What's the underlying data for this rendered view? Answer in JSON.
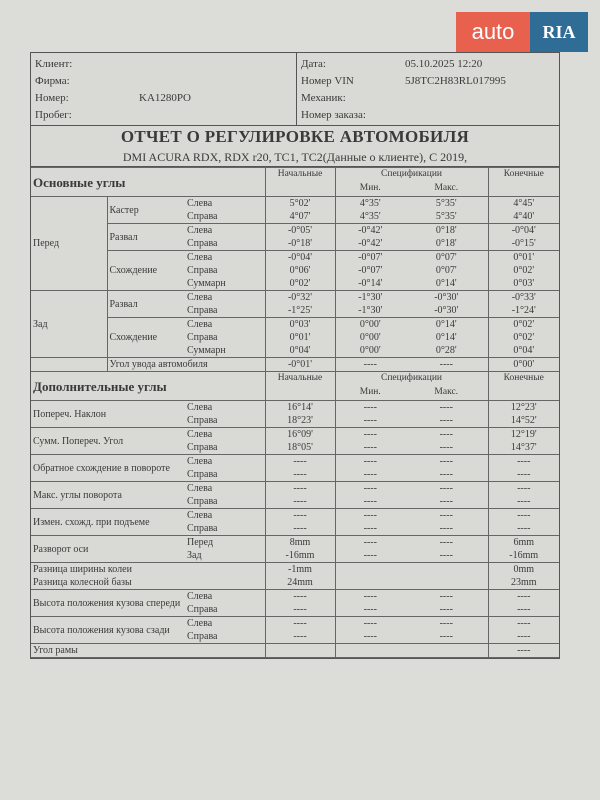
{
  "watermark": {
    "part1": "auto",
    "part2": "RIA"
  },
  "header": {
    "left": [
      {
        "label": "Клиент:",
        "value": ""
      },
      {
        "label": "Фирма:",
        "value": ""
      },
      {
        "label": "Номер:",
        "value": "KA1280PO"
      },
      {
        "label": "Пробег:",
        "value": ""
      }
    ],
    "right": [
      {
        "label": "Дата:",
        "value": "05.10.2025 12:20"
      },
      {
        "label": "Номер VIN",
        "value": "5J8TC2H83RL017995"
      },
      {
        "label": "Механик:",
        "value": ""
      },
      {
        "label": "Номер заказа:",
        "value": ""
      }
    ]
  },
  "title": "ОТЧЕТ О РЕГУЛИРОВКЕ АВТОМОБИЛЯ",
  "subtitle": "DMI ACURA RDX, RDX r20, TC1, TC2(Данные о клиенте), C 2019,",
  "columns": {
    "initial": "Начальные",
    "spec": "Спецификации",
    "min": "Мин.",
    "max": "Макс.",
    "final": "Конечные"
  },
  "main": {
    "heading": "Основные углы",
    "groups": [
      {
        "group": "Перед",
        "items": [
          {
            "name": "Кастер",
            "rows": [
              {
                "side": "Слева",
                "initial": "5°02'",
                "min": "4°35'",
                "max": "5°35'",
                "final": "4°45'"
              },
              {
                "side": "Справа",
                "initial": "4°07'",
                "min": "4°35'",
                "max": "5°35'",
                "final": "4°40'"
              }
            ]
          },
          {
            "name": "Развал",
            "rows": [
              {
                "side": "Слева",
                "initial": "-0°05'",
                "min": "-0°42'",
                "max": "0°18'",
                "final": "-0°04'"
              },
              {
                "side": "Справа",
                "initial": "-0°18'",
                "min": "-0°42'",
                "max": "0°18'",
                "final": "-0°15'"
              }
            ]
          },
          {
            "name": "Схождение",
            "rows": [
              {
                "side": "Слева",
                "initial": "-0°04'",
                "min": "-0°07'",
                "max": "0°07'",
                "final": "0°01'"
              },
              {
                "side": "Справа",
                "initial": "0°06'",
                "min": "-0°07'",
                "max": "0°07'",
                "final": "0°02'"
              },
              {
                "side": "Суммарн",
                "initial": "0°02'",
                "min": "-0°14'",
                "max": "0°14'",
                "final": "0°03'"
              }
            ]
          }
        ]
      },
      {
        "group": "Зад",
        "items": [
          {
            "name": "Развал",
            "rows": [
              {
                "side": "Слева",
                "initial": "-0°32'",
                "min": "-1°30'",
                "max": "-0°30'",
                "final": "-0°33'"
              },
              {
                "side": "Справа",
                "initial": "-1°25'",
                "min": "-1°30'",
                "max": "-0°30'",
                "final": "-1°24'"
              }
            ]
          },
          {
            "name": "Схождение",
            "rows": [
              {
                "side": "Слева",
                "initial": "0°03'",
                "min": "0°00'",
                "max": "0°14'",
                "final": "0°02'"
              },
              {
                "side": "Справа",
                "initial": "0°01'",
                "min": "0°00'",
                "max": "0°14'",
                "final": "0°02'"
              },
              {
                "side": "Суммарн",
                "initial": "0°04'",
                "min": "0°00'",
                "max": "0°28'",
                "final": "0°04'"
              }
            ]
          }
        ]
      }
    ],
    "thrust": {
      "name": "Угол увода автомобиля",
      "initial": "-0°01'",
      "min": "----",
      "max": "----",
      "final": "0°00'"
    }
  },
  "additional": {
    "heading": "Дополнительные углы",
    "items": [
      {
        "name": "Попереч. Наклон",
        "rows": [
          {
            "side": "Слева",
            "initial": "16°14'",
            "min": "----",
            "max": "----",
            "final": "12°23'"
          },
          {
            "side": "Справа",
            "initial": "18°23'",
            "min": "----",
            "max": "----",
            "final": "14°52'"
          }
        ]
      },
      {
        "name": "Сумм. Попереч. Угол",
        "rows": [
          {
            "side": "Слева",
            "initial": "16°09'",
            "min": "----",
            "max": "----",
            "final": "12°19'"
          },
          {
            "side": "Справа",
            "initial": "18°05'",
            "min": "----",
            "max": "----",
            "final": "14°37'"
          }
        ]
      },
      {
        "name": "Обратное схождение в повороте",
        "rows": [
          {
            "side": "Слева",
            "initial": "----",
            "min": "----",
            "max": "----",
            "final": "----"
          },
          {
            "side": "Справа",
            "initial": "----",
            "min": "----",
            "max": "----",
            "final": "----"
          }
        ]
      },
      {
        "name": "Макс. углы поворота",
        "rows": [
          {
            "side": "Слева",
            "initial": "----",
            "min": "----",
            "max": "----",
            "final": "----"
          },
          {
            "side": "Справа",
            "initial": "----",
            "min": "----",
            "max": "----",
            "final": "----"
          }
        ]
      },
      {
        "name": "Измен. схожд. при подъеме",
        "rows": [
          {
            "side": "Слева",
            "initial": "----",
            "min": "----",
            "max": "----",
            "final": "----"
          },
          {
            "side": "Справа",
            "initial": "----",
            "min": "----",
            "max": "----",
            "final": "----"
          }
        ]
      },
      {
        "name": "Разворот оси",
        "rows": [
          {
            "side": "Перед",
            "initial": "8mm",
            "min": "----",
            "max": "----",
            "final": "6mm"
          },
          {
            "side": "Зад",
            "initial": "-16mm",
            "min": "----",
            "max": "----",
            "final": "-16mm"
          }
        ]
      },
      {
        "name": "Разница ширины колеи",
        "nospec": true,
        "rows": [
          {
            "side": "",
            "initial": "-1mm",
            "min": "",
            "max": "",
            "final": "0mm"
          }
        ]
      },
      {
        "name": "Разница колесной базы",
        "nospec": true,
        "noborder": true,
        "rows": [
          {
            "side": "",
            "initial": "24mm",
            "min": "",
            "max": "",
            "final": "23mm"
          }
        ]
      },
      {
        "name": "Высота положения кузова спереди",
        "rows": [
          {
            "side": "Слева",
            "initial": "----",
            "min": "----",
            "max": "----",
            "final": "----"
          },
          {
            "side": "Справа",
            "initial": "----",
            "min": "----",
            "max": "----",
            "final": "----"
          }
        ]
      },
      {
        "name": "Высота положения кузова сзади",
        "rows": [
          {
            "side": "Слева",
            "initial": "----",
            "min": "----",
            "max": "----",
            "final": "----"
          },
          {
            "side": "Справа",
            "initial": "----",
            "min": "----",
            "max": "----",
            "final": "----"
          }
        ]
      },
      {
        "name": "Угол рамы",
        "nospec": true,
        "rows": [
          {
            "side": "",
            "initial": "",
            "min": "",
            "max": "",
            "final": "----"
          }
        ]
      }
    ]
  }
}
